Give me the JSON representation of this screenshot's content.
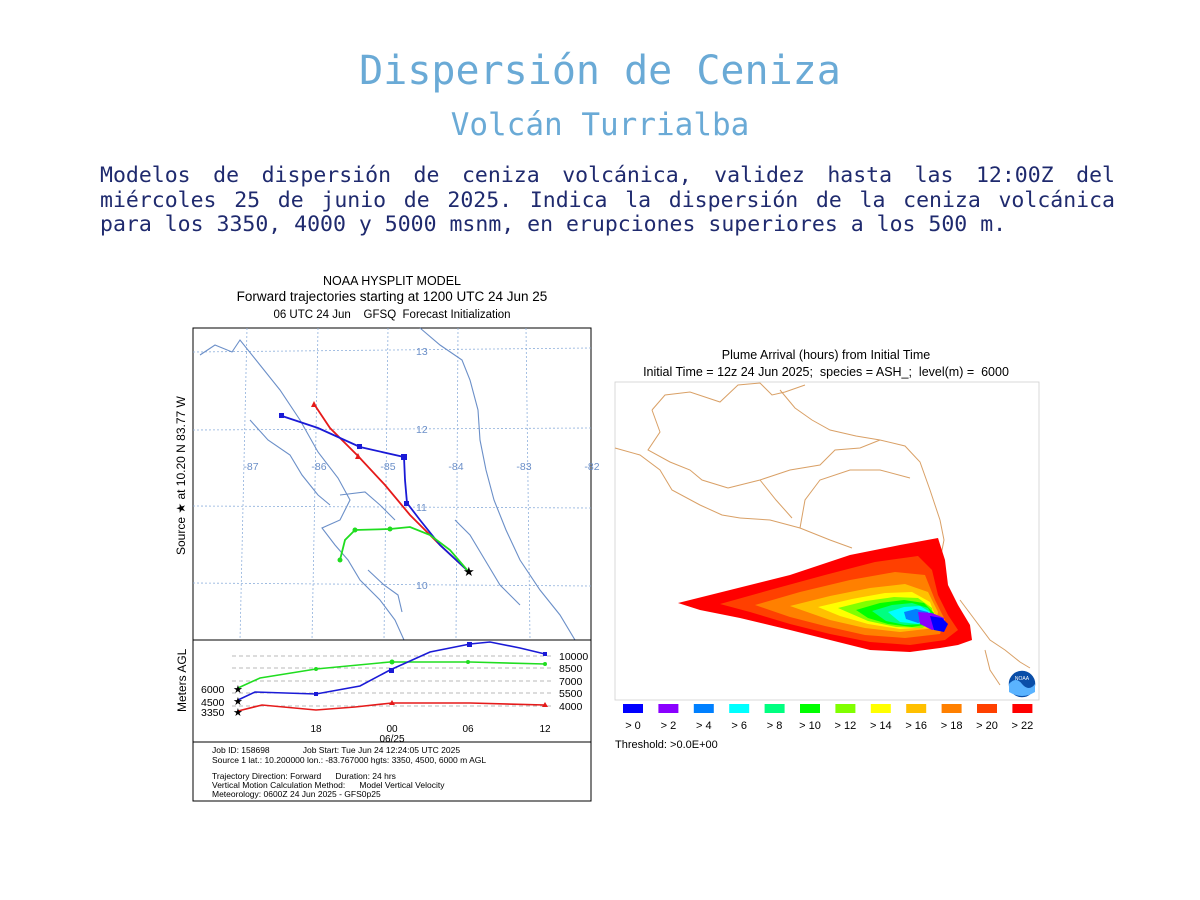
{
  "header": {
    "title": "Dispersión de Ceniza",
    "subtitle": "Volcán Turrialba",
    "description": "Modelos de dispersión de ceniza volcánica, validez hasta las 12:00Z del miércoles 25 de junio de 2025. Indica la dispersión de la ceniza volcánica para los 3350, 4000 y 5000 msnm, en erupciones superiores a los 500 m."
  },
  "trajectory": {
    "title_line1": "NOAA HYSPLIT MODEL",
    "title_line2": "Forward trajectories starting at 1200 UTC 24 Jun 25",
    "title_line3": "06 UTC 24 Jun    GFSQ  Forecast Initialization",
    "source_label": "Source ★ at  10.20 N  83.77 W",
    "lat_labels": [
      "13",
      "12",
      "11",
      "10"
    ],
    "lon_labels": [
      "-87",
      "-86",
      "-85",
      "-84",
      "-83",
      "-82"
    ],
    "yaxis_label": "Meters AGL",
    "time_labels": [
      "18",
      "00",
      "06",
      "12"
    ],
    "date_label": "06/25",
    "height_labels_right": [
      "10000",
      "8500",
      "7000",
      "5500",
      "4000"
    ],
    "start_heights_left": [
      "6000",
      "4500",
      "3350"
    ],
    "info": {
      "line1": "Job ID: 158698              Job Start: Tue Jun 24 12:24:05 UTC 2025",
      "line2": "Source 1 lat.: 10.200000  lon.: -83.767000  hgts: 3350, 4500, 6000 m AGL",
      "line3": "Trajectory Direction: Forward      Duration: 24 hrs",
      "line4": "Vertical Motion Calculation Method:      Model Vertical Velocity",
      "line5": "Meteorology: 0600Z 24 Jun 2025 - GFS0p25"
    },
    "series_colors": {
      "red": "#e51a1a",
      "blue": "#1a1ad6",
      "green": "#20dd20"
    }
  },
  "plume": {
    "title_line1": "Plume Arrival (hours) from Initial Time",
    "title_line2": "Initial Time = 12z 24 Jun 2025;  species = ASH_;  level(m) =  6000",
    "legend": [
      {
        "label": "> 0",
        "color": "#0000ff"
      },
      {
        "label": "> 2",
        "color": "#8a00ff"
      },
      {
        "label": "> 4",
        "color": "#0080ff"
      },
      {
        "label": "> 6",
        "color": "#00ffff"
      },
      {
        "label": "> 8",
        "color": "#00ff80"
      },
      {
        "label": "> 10",
        "color": "#00ff00"
      },
      {
        "label": "> 12",
        "color": "#80ff00"
      },
      {
        "label": "> 14",
        "color": "#ffff00"
      },
      {
        "label": "> 16",
        "color": "#ffc000"
      },
      {
        "label": "> 18",
        "color": "#ff8000"
      },
      {
        "label": "> 20",
        "color": "#ff4000"
      },
      {
        "label": "> 22",
        "color": "#ff0000"
      }
    ],
    "threshold": "Threshold: >0.0E+00",
    "logo_text": "NOAA"
  }
}
